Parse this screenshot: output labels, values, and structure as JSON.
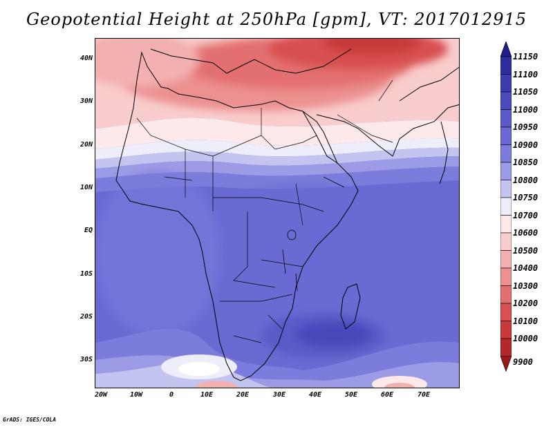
{
  "title": "Geopotential Height at 250hPa [gpm], VT: 2017012915",
  "credit": "GrADS: IGES/COLA",
  "map": {
    "lat_labels": [
      "40N",
      "30N",
      "20N",
      "10N",
      "EQ",
      "10S",
      "20S",
      "30S"
    ],
    "lon_labels": [
      "20W",
      "10W",
      "0",
      "10E",
      "20E",
      "30E",
      "40E",
      "50E",
      "60E",
      "70E"
    ],
    "lon_range": [
      -25,
      80
    ],
    "lat_range": [
      -37,
      45
    ]
  },
  "legend": {
    "levels": [
      "11150",
      "11100",
      "11050",
      "11000",
      "10950",
      "10900",
      "10850",
      "10800",
      "10750",
      "10700",
      "10600",
      "10500",
      "10400",
      "10300",
      "10200",
      "10100",
      "10000",
      "9900"
    ],
    "colors": [
      "#1e1e8c",
      "#2d2d9e",
      "#3c3cae",
      "#4a4abc",
      "#5a5ac8",
      "#6a6ad2",
      "#7c7cdc",
      "#9c9ce6",
      "#c4c4f0",
      "#eeeefa",
      "#fde9e9",
      "#f9cdcd",
      "#f3b0b0",
      "#ec9090",
      "#e37070",
      "#d85050",
      "#c83a3a",
      "#b22828",
      "#9e1a1a"
    ]
  }
}
